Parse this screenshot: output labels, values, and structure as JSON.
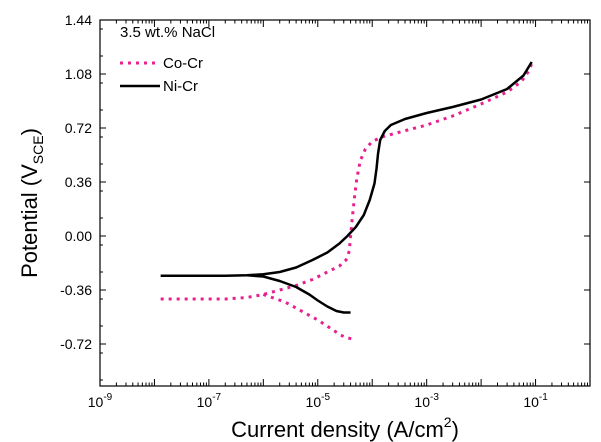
{
  "chart_data": {
    "type": "line",
    "annotation": "3.5 wt.% NaCl",
    "xlabel": "Current density (A/cm²)",
    "xlabel_main": "Current density (A/cm",
    "xlabel_sup": "2",
    "xlabel_close": ")",
    "ylabel": "Potential (V_SCE)",
    "ylabel_main": "Potential (V",
    "ylabel_sub": "SCE",
    "ylabel_close": ")",
    "x_scale": "log",
    "xlim": [
      1e-09,
      1
    ],
    "ylim": [
      -1.0,
      1.44
    ],
    "x_ticks": [
      {
        "value": 1e-09,
        "base": "10",
        "exp": "-9"
      },
      {
        "value": 1e-07,
        "base": "10",
        "exp": "-7"
      },
      {
        "value": 1e-05,
        "base": "10",
        "exp": "-5"
      },
      {
        "value": 0.001,
        "base": "10",
        "exp": "-3"
      },
      {
        "value": 0.1,
        "base": "10",
        "exp": "-1"
      }
    ],
    "y_ticks": [
      {
        "value": 1.44,
        "label": "1.44"
      },
      {
        "value": 1.08,
        "label": "1.08"
      },
      {
        "value": 0.72,
        "label": "0.72"
      },
      {
        "value": 0.36,
        "label": "0.36"
      },
      {
        "value": 0.0,
        "label": "0.00"
      },
      {
        "value": -0.36,
        "label": "-0.36"
      },
      {
        "value": -0.72,
        "label": "-0.72"
      }
    ],
    "grid": false,
    "legend_position": "top-left",
    "series": [
      {
        "name": "Co-Cr",
        "color": "#e8208e",
        "style": "dotted",
        "points": [
          [
            1.3e-08,
            -0.42
          ],
          [
            5e-08,
            -0.42
          ],
          [
            2e-07,
            -0.42
          ],
          [
            5e-07,
            -0.41
          ],
          [
            1e-06,
            -0.39
          ],
          [
            2e-06,
            -0.36
          ],
          [
            4e-06,
            -0.33
          ],
          [
            8e-06,
            -0.29
          ],
          [
            1.5e-05,
            -0.24
          ],
          [
            2.5e-05,
            -0.2
          ],
          [
            3.3e-05,
            -0.16
          ],
          [
            3.8e-05,
            -0.1
          ],
          [
            4e-05,
            0.0
          ],
          [
            4.3e-05,
            0.12
          ],
          [
            4.7e-05,
            0.25
          ],
          [
            5.2e-05,
            0.38
          ],
          [
            6e-05,
            0.5
          ],
          [
            7.5e-05,
            0.58
          ],
          [
            0.0001,
            0.63
          ],
          [
            0.00015,
            0.66
          ],
          [
            0.0003,
            0.69
          ],
          [
            0.001,
            0.74
          ],
          [
            0.003,
            0.8
          ],
          [
            0.01,
            0.88
          ],
          [
            0.03,
            0.96
          ],
          [
            0.055,
            1.03
          ],
          [
            0.075,
            1.1
          ],
          [
            0.085,
            1.15
          ]
        ]
      },
      {
        "name": "Co-Cr",
        "color": "#e8208e",
        "style": "dotted",
        "points": [
          [
            1e-06,
            -0.39
          ],
          [
            2.5e-06,
            -0.44
          ],
          [
            5e-06,
            -0.5
          ],
          [
            1e-05,
            -0.56
          ],
          [
            1.8e-05,
            -0.62
          ],
          [
            2.6e-05,
            -0.66
          ],
          [
            3.5e-05,
            -0.68
          ],
          [
            4.3e-05,
            -0.685
          ]
        ]
      },
      {
        "name": "Ni-Cr",
        "color": "#000000",
        "style": "solid",
        "points": [
          [
            1.3e-08,
            -0.265
          ],
          [
            5e-08,
            -0.265
          ],
          [
            2e-07,
            -0.265
          ],
          [
            5e-07,
            -0.262
          ],
          [
            1e-06,
            -0.255
          ],
          [
            2e-06,
            -0.24
          ],
          [
            4e-06,
            -0.21
          ],
          [
            8e-06,
            -0.16
          ],
          [
            1.5e-05,
            -0.11
          ],
          [
            2.5e-05,
            -0.05
          ],
          [
            3.5e-05,
            0.0
          ],
          [
            5e-05,
            0.06
          ],
          [
            7e-05,
            0.14
          ],
          [
            9e-05,
            0.24
          ],
          [
            0.00011,
            0.35
          ],
          [
            0.00012,
            0.45
          ],
          [
            0.000128,
            0.55
          ],
          [
            0.00014,
            0.64
          ],
          [
            0.00017,
            0.7
          ],
          [
            0.00022,
            0.74
          ],
          [
            0.0004,
            0.78
          ],
          [
            0.001,
            0.82
          ],
          [
            0.003,
            0.86
          ],
          [
            0.01,
            0.91
          ],
          [
            0.03,
            0.98
          ],
          [
            0.06,
            1.07
          ],
          [
            0.085,
            1.16
          ]
        ]
      },
      {
        "name": "Ni-Cr",
        "color": "#000000",
        "style": "solid",
        "points": [
          [
            5e-07,
            -0.262
          ],
          [
            1e-06,
            -0.27
          ],
          [
            2e-06,
            -0.3
          ],
          [
            4e-06,
            -0.34
          ],
          [
            7e-06,
            -0.39
          ],
          [
            1e-05,
            -0.43
          ],
          [
            1.5e-05,
            -0.47
          ],
          [
            2.2e-05,
            -0.5
          ],
          [
            3e-05,
            -0.51
          ],
          [
            4e-05,
            -0.51
          ]
        ]
      }
    ],
    "legend": [
      {
        "label": "Co-Cr",
        "color": "#e8208e",
        "style": "dotted"
      },
      {
        "label": "Ni-Cr",
        "color": "#000000",
        "style": "solid"
      }
    ]
  }
}
